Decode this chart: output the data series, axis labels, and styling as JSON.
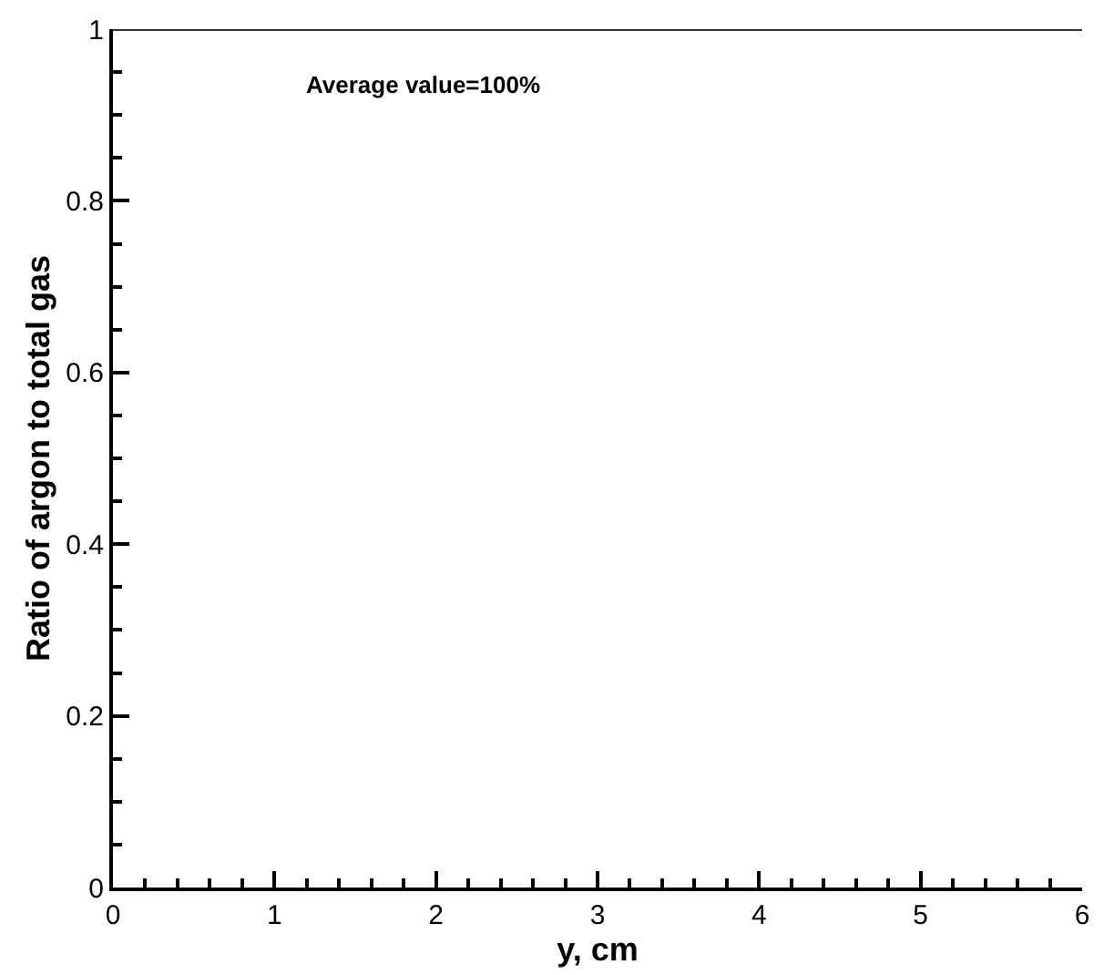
{
  "chart_data": {
    "type": "line",
    "xlabel": "y, cm",
    "ylabel": "Ratio of argon to total gas",
    "x": [
      0,
      6
    ],
    "series": [
      {
        "color": "#333333",
        "values": [
          1,
          1
        ]
      }
    ],
    "xlim": [
      0,
      6
    ],
    "xticks": [
      0,
      1,
      2,
      3,
      4,
      5,
      6
    ],
    "ylim": [
      0,
      1
    ],
    "yticks": [
      0,
      0.2,
      0.4,
      0.6,
      0.8,
      1
    ],
    "marker": "none",
    "line_style": "solid",
    "annotations": [
      "Average value=100%"
    ]
  }
}
